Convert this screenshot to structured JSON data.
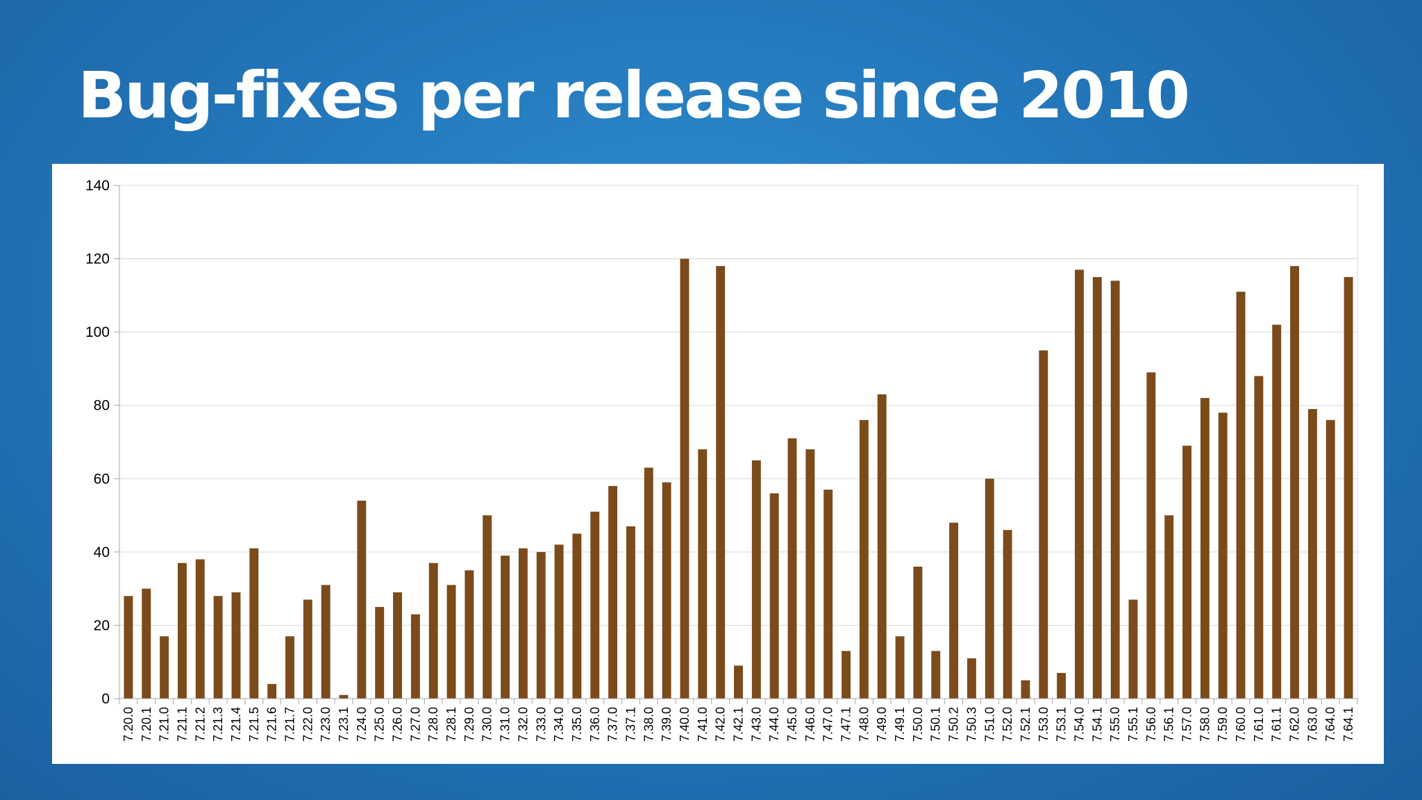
{
  "title": "Bug-fixes per release since 2010",
  "colors": {
    "bar": "#7b4b1b",
    "grid": "#d9d9d9",
    "axis": "#a6a6a6"
  },
  "chart_data": {
    "type": "bar",
    "title": "",
    "xlabel": "",
    "ylabel": "",
    "ylim": [
      0,
      140
    ],
    "yticks": [
      0,
      20,
      40,
      60,
      80,
      100,
      120,
      140
    ],
    "grid": true,
    "legend": "none",
    "categories": [
      "7.20.0",
      "7.20.1",
      "7.21.0",
      "7.21.1",
      "7.21.2",
      "7.21.3",
      "7.21.4",
      "7.21.5",
      "7.21.6",
      "7.21.7",
      "7.22.0",
      "7.23.0",
      "7.23.1",
      "7.24.0",
      "7.25.0",
      "7.26.0",
      "7.27.0",
      "7.28.0",
      "7.28.1",
      "7.29.0",
      "7.30.0",
      "7.31.0",
      "7.32.0",
      "7.33.0",
      "7.34.0",
      "7.35.0",
      "7.36.0",
      "7.37.0",
      "7.37.1",
      "7.38.0",
      "7.39.0",
      "7.40.0",
      "7.41.0",
      "7.42.0",
      "7.42.1",
      "7.43.0",
      "7.44.0",
      "7.45.0",
      "7.46.0",
      "7.47.0",
      "7.47.1",
      "7.48.0",
      "7.49.0",
      "7.49.1",
      "7.50.0",
      "7.50.1",
      "7.50.2",
      "7.50.3",
      "7.51.0",
      "7.52.0",
      "7.52.1",
      "7.53.0",
      "7.53.1",
      "7.54.0",
      "7.54.1",
      "7.55.0",
      "7.55.1",
      "7.56.0",
      "7.56.1",
      "7.57.0",
      "7.58.0",
      "7.59.0",
      "7.60.0",
      "7.61.0",
      "7.61.1",
      "7.62.0",
      "7.63.0",
      "7.64.0",
      "7.64.1"
    ],
    "values": [
      28,
      30,
      17,
      37,
      38,
      28,
      29,
      41,
      4,
      17,
      27,
      31,
      1,
      54,
      25,
      29,
      23,
      37,
      31,
      35,
      50,
      39,
      41,
      40,
      42,
      45,
      51,
      58,
      47,
      63,
      59,
      120,
      68,
      118,
      9,
      65,
      56,
      71,
      68,
      57,
      13,
      76,
      83,
      17,
      36,
      13,
      48,
      11,
      60,
      46,
      5,
      95,
      7,
      117,
      115,
      114,
      27,
      89,
      50,
      69,
      82,
      78,
      111,
      88,
      102,
      118,
      79,
      76,
      115
    ]
  }
}
